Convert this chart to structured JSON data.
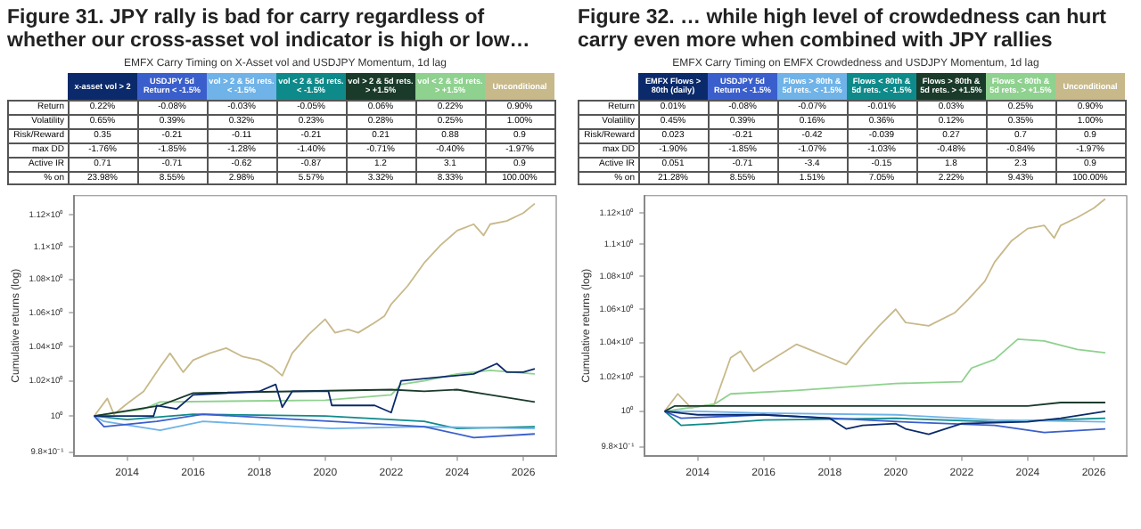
{
  "chart_data": [
    {
      "type": "other",
      "title": "Figure 31. JPY rally is bad for carry regardless of whether our cross-asset vol indicator is high or low…",
      "subtitle": "EMFX Carry Timing on X-Asset vol and USDJPY Momentum, 1d lag",
      "categories": [
        "x-asset vol > 2",
        "USDJPY 5d Return < -1.5%",
        "vol > 2 & 5d rets. < -1.5%",
        "vol < 2 & 5d rets. < -1.5%",
        "vol > 2 & 5d rets. > +1.5%",
        "vol < 2 & 5d rets. > +1.5%",
        "Unconditional"
      ],
      "colors": [
        "#0b2a6b",
        "#3a5fcd",
        "#6fb3e8",
        "#0f8a8a",
        "#1a3a2a",
        "#8fd18f",
        "#c8b98a"
      ],
      "y_categories": [
        "Return",
        "Volatility",
        "Risk/Reward",
        "max DD",
        "Active IR",
        "% on"
      ],
      "cell_labels": [
        [
          "0.22%",
          "-0.08%",
          "-0.03%",
          "-0.05%",
          "0.06%",
          "0.22%",
          "0.90%"
        ],
        [
          "0.65%",
          "0.39%",
          "0.32%",
          "0.23%",
          "0.28%",
          "0.25%",
          "1.00%"
        ],
        [
          "0.35",
          "-0.21",
          "-0.11",
          "-0.21",
          "0.21",
          "0.88",
          "0.9"
        ],
        [
          "-1.76%",
          "-1.85%",
          "-1.28%",
          "-1.40%",
          "-0.71%",
          "-0.40%",
          "-1.97%"
        ],
        [
          "0.71",
          "-0.71",
          "-0.62",
          "-0.87",
          "1.2",
          "3.1",
          "0.9"
        ],
        [
          "23.98%",
          "8.55%",
          "2.98%",
          "5.57%",
          "3.32%",
          "8.33%",
          "100.00%"
        ]
      ]
    },
    {
      "type": "line",
      "ylabel": "Cumulative returns (log)",
      "log": "y",
      "grid": false,
      "legend": false,
      "marker": "none",
      "xlim": [
        2012.4,
        2027.0
      ],
      "xticks": [
        2014,
        2016,
        2018,
        2020,
        2022,
        2024,
        2026
      ],
      "ylim": [
        0.978,
        1.132
      ],
      "yticks": [
        {
          "value": 0.98,
          "label": "9.8×10⁻¹"
        },
        {
          "value": 1,
          "label": "10⁰"
        },
        {
          "value": 1.02,
          "label": "1.02×10⁰"
        },
        {
          "value": 1.04,
          "label": "1.04×10⁰"
        },
        {
          "value": 1.06,
          "label": "1.06×10⁰"
        },
        {
          "value": 1.08,
          "label": "1.08×10⁰"
        },
        {
          "value": 1.1,
          "label": "1.1×10⁰"
        },
        {
          "value": 1.12,
          "label": "1.12×10⁰"
        }
      ],
      "series": [
        {
          "color": "#0b2a6b",
          "x": [
            2013,
            2014.8,
            2014.9,
            2015.5,
            2016,
            2018,
            2018.5,
            2018.7,
            2019,
            2020.1,
            2020.2,
            2021.5,
            2022,
            2022.3,
            2024.5,
            2025.2,
            2025.5,
            2026,
            2026.35
          ],
          "values": [
            1.0,
            1.0,
            1.006,
            1.004,
            1.012,
            1.014,
            1.018,
            1.005,
            1.014,
            1.014,
            1.006,
            1.006,
            1.002,
            1.02,
            1.024,
            1.03,
            1.025,
            1.025,
            1.027
          ]
        },
        {
          "color": "#3a5fcd",
          "x": [
            2013,
            2013.3,
            2014.9,
            2016.3,
            2020.2,
            2023,
            2024.5,
            2026.35
          ],
          "values": [
            1.0,
            0.994,
            0.997,
            1.001,
            0.997,
            0.994,
            0.988,
            0.99
          ]
        },
        {
          "color": "#6fb3e8",
          "x": [
            2013,
            2013.3,
            2015,
            2016.3,
            2020.2,
            2023,
            2026.35
          ],
          "values": [
            1.0,
            0.997,
            0.992,
            0.997,
            0.993,
            0.994,
            0.993
          ]
        },
        {
          "color": "#0f8a8a",
          "x": [
            2013,
            2014,
            2016,
            2020,
            2023,
            2024,
            2026.35
          ],
          "values": [
            1.0,
            0.998,
            1.001,
            1.0,
            0.997,
            0.993,
            0.994
          ]
        },
        {
          "color": "#1a3a2a",
          "x": [
            2013,
            2015,
            2016,
            2022,
            2023,
            2024,
            2025,
            2026.35
          ],
          "values": [
            1.0,
            1.006,
            1.013,
            1.015,
            1.014,
            1.015,
            1.012,
            1.008
          ]
        },
        {
          "color": "#8fd18f",
          "x": [
            2013,
            2014.5,
            2015,
            2020,
            2022,
            2022.3,
            2023,
            2024,
            2025,
            2026.35
          ],
          "values": [
            1.0,
            1.004,
            1.008,
            1.009,
            1.012,
            1.018,
            1.02,
            1.024,
            1.026,
            1.024
          ]
        },
        {
          "color": "#c8b98a",
          "x": [
            2013.0,
            2013.4,
            2013.6,
            2014,
            2014.5,
            2015,
            2015.3,
            2015.7,
            2016,
            2016.5,
            2017,
            2017.5,
            2018,
            2018.4,
            2018.7,
            2019,
            2019.5,
            2020,
            2020.3,
            2020.7,
            2021,
            2021.5,
            2021.8,
            2022,
            2022.5,
            2023,
            2023.5,
            2024,
            2024.5,
            2024.8,
            2025,
            2025.5,
            2026,
            2026.35
          ],
          "values": [
            1.0,
            1.01,
            1.001,
            1.007,
            1.014,
            1.028,
            1.036,
            1.025,
            1.032,
            1.036,
            1.039,
            1.034,
            1.032,
            1.028,
            1.023,
            1.036,
            1.047,
            1.056,
            1.048,
            1.05,
            1.048,
            1.054,
            1.058,
            1.065,
            1.076,
            1.09,
            1.101,
            1.11,
            1.114,
            1.107,
            1.114,
            1.116,
            1.121,
            1.127
          ]
        }
      ]
    },
    {
      "type": "other",
      "title": "Figure 32. … while high level of crowdedness can hurt carry even more when combined with JPY rallies",
      "subtitle": "EMFX Carry Timing on EMFX Crowdedness and USDJPY Momentum, 1d lag",
      "categories": [
        "EMFX Flows > 80th (daily)",
        "USDJPY 5d Return < -1.5%",
        "Flows > 80th & 5d rets. < -1.5%",
        "Flows < 80th & 5d rets. < -1.5%",
        "Flows > 80th & 5d rets. > +1.5%",
        "Flows < 80th & 5d rets. > +1.5%",
        "Unconditional"
      ],
      "colors": [
        "#0b2a6b",
        "#3a5fcd",
        "#6fb3e8",
        "#0f8a8a",
        "#1a3a2a",
        "#8fd18f",
        "#c8b98a"
      ],
      "y_categories": [
        "Return",
        "Volatility",
        "Risk/Reward",
        "max DD",
        "Active IR",
        "% on"
      ],
      "cell_labels": [
        [
          "0.01%",
          "-0.08%",
          "-0.07%",
          "-0.01%",
          "0.03%",
          "0.25%",
          "0.90%"
        ],
        [
          "0.45%",
          "0.39%",
          "0.16%",
          "0.36%",
          "0.12%",
          "0.35%",
          "1.00%"
        ],
        [
          "0.023",
          "-0.21",
          "-0.42",
          "-0.039",
          "0.27",
          "0.7",
          "0.9"
        ],
        [
          "-1.90%",
          "-1.85%",
          "-1.07%",
          "-1.03%",
          "-0.48%",
          "-0.84%",
          "-1.97%"
        ],
        [
          "0.051",
          "-0.71",
          "-3.4",
          "-0.15",
          "1.8",
          "2.3",
          "0.9"
        ],
        [
          "21.28%",
          "8.55%",
          "1.51%",
          "7.05%",
          "2.22%",
          "9.43%",
          "100.00%"
        ]
      ]
    },
    {
      "type": "line",
      "ylabel": "Cumulative returns (log)",
      "log": "y",
      "grid": false,
      "legend": false,
      "marker": "none",
      "xlim": [
        2012.4,
        2027.0
      ],
      "xticks": [
        2014,
        2016,
        2018,
        2020,
        2022,
        2024,
        2026
      ],
      "ylim": [
        0.975,
        1.131
      ],
      "yticks": [
        {
          "value": 0.98,
          "label": "9.8×10⁻¹"
        },
        {
          "value": 1,
          "label": "10⁰"
        },
        {
          "value": 1.02,
          "label": "1.02×10⁰"
        },
        {
          "value": 1.04,
          "label": "1.04×10⁰"
        },
        {
          "value": 1.06,
          "label": "1.06×10⁰"
        },
        {
          "value": 1.08,
          "label": "1.08×10⁰"
        },
        {
          "value": 1.1,
          "label": "1.1×10⁰"
        },
        {
          "value": 1.12,
          "label": "1.12×10⁰"
        }
      ],
      "series": [
        {
          "color": "#0b2a6b",
          "x": [
            2013,
            2014,
            2016,
            2018,
            2018.5,
            2019,
            2020,
            2020.3,
            2021,
            2022,
            2024,
            2025,
            2026.35
          ],
          "values": [
            1.0,
            0.998,
            0.998,
            0.996,
            0.99,
            0.992,
            0.993,
            0.99,
            0.987,
            0.993,
            0.994,
            0.996,
            1.0
          ]
        },
        {
          "color": "#3a5fcd",
          "x": [
            2013,
            2013.5,
            2016,
            2020.2,
            2023,
            2024.5,
            2026.35
          ],
          "values": [
            1.0,
            0.996,
            0.998,
            0.994,
            0.992,
            0.988,
            0.99
          ]
        },
        {
          "color": "#6fb3e8",
          "x": [
            2013,
            2014,
            2016,
            2020,
            2023,
            2026.35
          ],
          "values": [
            1.0,
            1.0,
            0.999,
            0.998,
            0.995,
            0.994
          ]
        },
        {
          "color": "#0f8a8a",
          "x": [
            2013,
            2013.5,
            2014.5,
            2016,
            2020,
            2023,
            2026.35
          ],
          "values": [
            1.0,
            0.992,
            0.993,
            0.995,
            0.996,
            0.994,
            0.996
          ]
        },
        {
          "color": "#1a3a2a",
          "x": [
            2013,
            2013.3,
            2024,
            2025,
            2026.35
          ],
          "values": [
            1.0,
            1.003,
            1.003,
            1.005,
            1.005
          ]
        },
        {
          "color": "#8fd18f",
          "x": [
            2013,
            2014.5,
            2015,
            2017,
            2020,
            2022,
            2022.3,
            2023,
            2023.7,
            2024.5,
            2025.5,
            2026.35
          ],
          "values": [
            1.0,
            1.004,
            1.01,
            1.012,
            1.016,
            1.017,
            1.025,
            1.03,
            1.042,
            1.041,
            1.036,
            1.034
          ]
        },
        {
          "color": "#c8b98a",
          "x": [
            2013,
            2013.4,
            2013.8,
            2014.5,
            2015,
            2015.3,
            2015.7,
            2016,
            2017,
            2017.5,
            2018,
            2018.5,
            2019,
            2019.5,
            2020,
            2020.3,
            2021,
            2021.8,
            2022.2,
            2022.7,
            2023,
            2023.5,
            2024,
            2024.5,
            2024.8,
            2025,
            2025.5,
            2026,
            2026.35
          ],
          "values": [
            1.0,
            1.01,
            1.002,
            1.004,
            1.031,
            1.035,
            1.023,
            1.027,
            1.039,
            1.035,
            1.031,
            1.027,
            1.039,
            1.05,
            1.06,
            1.052,
            1.05,
            1.058,
            1.066,
            1.077,
            1.089,
            1.102,
            1.11,
            1.112,
            1.104,
            1.112,
            1.117,
            1.123,
            1.129
          ]
        }
      ]
    }
  ]
}
